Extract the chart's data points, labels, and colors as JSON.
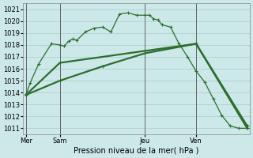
{
  "background_color": "#cce8e8",
  "grid_color": "#aacccc",
  "line_color": "#2d6e2d",
  "title": "Pression niveau de la mer( hPa )",
  "ylim": [
    1010.5,
    1021.5
  ],
  "yticks": [
    1011,
    1012,
    1013,
    1014,
    1015,
    1016,
    1017,
    1018,
    1019,
    1020,
    1021
  ],
  "day_labels": [
    "Mer",
    "Sam",
    "Jeu",
    "Ven"
  ],
  "day_positions": [
    0,
    4,
    14,
    20
  ],
  "xlim": [
    -0.3,
    26.3
  ],
  "series1_x": [
    0,
    0.5,
    1.5,
    3,
    4,
    4.5,
    5,
    5.5,
    6,
    7,
    8,
    9,
    10,
    11,
    12,
    13,
    14,
    14.5,
    15,
    15.5,
    16,
    17,
    18,
    19,
    20,
    21,
    22,
    23,
    24,
    25,
    26
  ],
  "series1_y": [
    1013.8,
    1014.8,
    1016.4,
    1018.1,
    1018.0,
    1017.9,
    1018.3,
    1018.5,
    1018.4,
    1019.1,
    1019.4,
    1019.5,
    1019.1,
    1020.6,
    1020.7,
    1020.5,
    1020.5,
    1020.5,
    1020.2,
    1020.1,
    1019.7,
    1019.5,
    1018.1,
    1017.0,
    1015.8,
    1014.9,
    1013.5,
    1012.1,
    1011.2,
    1011.0,
    1011.0
  ],
  "series2_x": [
    0,
    4,
    9,
    14,
    20,
    26
  ],
  "series2_y": [
    1013.8,
    1015.0,
    1016.2,
    1017.3,
    1018.1,
    1011.2
  ],
  "series3_x": [
    0,
    4,
    14,
    20,
    26
  ],
  "series3_y": [
    1013.8,
    1016.5,
    1017.5,
    1018.1,
    1011.0
  ]
}
